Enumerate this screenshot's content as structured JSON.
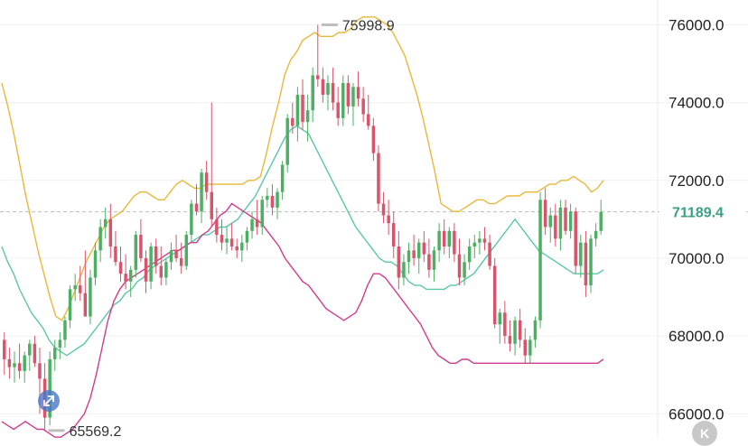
{
  "chart_data": {
    "type": "candlestick",
    "y_ticks": [
      "76000.0",
      "74000.0",
      "72000.0",
      "70000.0",
      "68000.0",
      "66000.0"
    ],
    "ylim": [
      65450,
      76450
    ],
    "high_marker": {
      "value": 75998.9,
      "label": "75998.9"
    },
    "low_marker": {
      "value": 65569.2,
      "label": "65569.2"
    },
    "current_price": {
      "value": 71189.4,
      "label": "71189.4"
    },
    "colors": {
      "up": "#4caf62",
      "down": "#d9536a",
      "upper_band": "#e8b83a",
      "middle_band": "#5cc6a8",
      "lower_band": "#d03c8c",
      "price_line": "#bdbdbd"
    },
    "candles": [
      [
        67900,
        68100,
        67000,
        67400
      ],
      [
        67400,
        67700,
        66900,
        67200
      ],
      [
        67200,
        67600,
        66800,
        67300
      ],
      [
        67300,
        67800,
        66900,
        67100
      ],
      [
        67100,
        67600,
        66800,
        67500
      ],
      [
        67500,
        67900,
        67100,
        67800
      ],
      [
        67800,
        68000,
        67200,
        67300
      ],
      [
        67300,
        67700,
        66000,
        66900
      ],
      [
        66900,
        67300,
        65569,
        65900
      ],
      [
        65900,
        67600,
        65700,
        67400
      ],
      [
        67400,
        67900,
        67100,
        67700
      ],
      [
        67700,
        68100,
        67400,
        67900
      ],
      [
        67900,
        68500,
        67700,
        68400
      ],
      [
        68400,
        69300,
        68200,
        69200
      ],
      [
        69200,
        69600,
        68900,
        69300
      ],
      [
        69300,
        69800,
        68900,
        69100
      ],
      [
        69100,
        70200,
        68500,
        68500
      ],
      [
        68500,
        69700,
        68300,
        69500
      ],
      [
        69500,
        70400,
        69300,
        70200
      ],
      [
        70200,
        71000,
        69900,
        70800
      ],
      [
        70800,
        71300,
        70500,
        71000
      ],
      [
        71000,
        71400,
        70000,
        70300
      ],
      [
        70300,
        70700,
        69800,
        69900
      ],
      [
        69900,
        70300,
        69400,
        69600
      ],
      [
        69600,
        70100,
        69200,
        69400
      ],
      [
        69400,
        69800,
        69000,
        69700
      ],
      [
        69700,
        70700,
        69500,
        70600
      ],
      [
        70600,
        71000,
        69900,
        70000
      ],
      [
        70000,
        70200,
        69100,
        69400
      ],
      [
        69400,
        70400,
        69200,
        70300
      ],
      [
        70300,
        70500,
        69600,
        69800
      ],
      [
        69800,
        70300,
        69300,
        69500
      ],
      [
        69500,
        70000,
        69300,
        69900
      ],
      [
        69900,
        70400,
        69700,
        70200
      ],
      [
        70200,
        70600,
        69900,
        70000
      ],
      [
        70000,
        70400,
        69600,
        69800
      ],
      [
        69800,
        70700,
        69700,
        70600
      ],
      [
        70600,
        71500,
        70400,
        71400
      ],
      [
        71400,
        71900,
        71100,
        71200
      ],
      [
        71200,
        72300,
        70900,
        72200
      ],
      [
        72200,
        72500,
        71500,
        71700
      ],
      [
        71700,
        74000,
        70800,
        71000
      ],
      [
        71000,
        71300,
        70400,
        70600
      ],
      [
        70600,
        71000,
        70200,
        70400
      ],
      [
        70400,
        70800,
        70100,
        70500
      ],
      [
        70500,
        70900,
        70200,
        70300
      ],
      [
        70300,
        70500,
        70000,
        70200
      ],
      [
        70200,
        70600,
        69900,
        70400
      ],
      [
        70400,
        70800,
        70200,
        70700
      ],
      [
        70700,
        71200,
        70500,
        71000
      ],
      [
        71000,
        71500,
        70600,
        70800
      ],
      [
        70800,
        71600,
        70600,
        71500
      ],
      [
        71500,
        71800,
        71300,
        71600
      ],
      [
        71600,
        71900,
        71100,
        71300
      ],
      [
        71300,
        71800,
        71000,
        71700
      ],
      [
        71700,
        72500,
        71500,
        72400
      ],
      [
        72400,
        73700,
        72200,
        73600
      ],
      [
        73600,
        74000,
        73200,
        73400
      ],
      [
        73400,
        74400,
        73000,
        74200
      ],
      [
        74200,
        74600,
        73300,
        73500
      ],
      [
        73500,
        74200,
        73000,
        73800
      ],
      [
        73800,
        74900,
        73500,
        74700
      ],
      [
        74700,
        76000,
        74400,
        74600
      ],
      [
        74600,
        74900,
        74000,
        74200
      ],
      [
        74200,
        74700,
        73800,
        74500
      ],
      [
        74500,
        74900,
        73800,
        74000
      ],
      [
        74000,
        74400,
        73400,
        73600
      ],
      [
        73600,
        74700,
        73400,
        74500
      ],
      [
        74500,
        74700,
        73700,
        73900
      ],
      [
        73900,
        74500,
        73400,
        74400
      ],
      [
        74400,
        74800,
        73900,
        74100
      ],
      [
        74100,
        74400,
        73500,
        73700
      ],
      [
        73700,
        74200,
        73300,
        73400
      ],
      [
        73400,
        73600,
        72500,
        72700
      ],
      [
        72700,
        72900,
        71200,
        71400
      ],
      [
        71400,
        71700,
        70900,
        71100
      ],
      [
        71100,
        71500,
        70600,
        70900
      ],
      [
        70900,
        71200,
        70000,
        70300
      ],
      [
        70300,
        70700,
        69200,
        69500
      ],
      [
        69500,
        70100,
        69300,
        69900
      ],
      [
        69900,
        70400,
        69600,
        70200
      ],
      [
        70200,
        70600,
        69800,
        70000
      ],
      [
        70000,
        70500,
        69600,
        70400
      ],
      [
        70400,
        70700,
        69900,
        70100
      ],
      [
        70100,
        70500,
        69500,
        69700
      ],
      [
        69700,
        70300,
        69400,
        70200
      ],
      [
        70200,
        70900,
        69900,
        70700
      ],
      [
        70700,
        71000,
        70100,
        70300
      ],
      [
        70300,
        70800,
        70000,
        70700
      ],
      [
        70700,
        70900,
        69900,
        70100
      ],
      [
        70100,
        70500,
        69300,
        69500
      ],
      [
        69500,
        70100,
        69300,
        69900
      ],
      [
        69900,
        70500,
        69700,
        70300
      ],
      [
        70300,
        70600,
        70000,
        70400
      ],
      [
        70400,
        70700,
        70100,
        70500
      ],
      [
        70500,
        70800,
        70200,
        70400
      ],
      [
        70400,
        70600,
        69700,
        69800
      ],
      [
        69800,
        70000,
        68200,
        68300
      ],
      [
        68300,
        68700,
        67800,
        68600
      ],
      [
        68600,
        68900,
        67800,
        68000
      ],
      [
        68000,
        68400,
        67600,
        67800
      ],
      [
        67800,
        68500,
        67500,
        68400
      ],
      [
        68400,
        68700,
        67700,
        67900
      ],
      [
        67900,
        68200,
        67300,
        67500
      ],
      [
        67500,
        68000,
        67300,
        67900
      ],
      [
        67900,
        68500,
        67700,
        68400
      ],
      [
        68400,
        71700,
        68200,
        71500
      ],
      [
        71500,
        71800,
        70600,
        70800
      ],
      [
        70800,
        71300,
        70400,
        71100
      ],
      [
        71100,
        71400,
        70300,
        70500
      ],
      [
        70500,
        71500,
        70200,
        71300
      ],
      [
        71300,
        71500,
        70600,
        70700
      ],
      [
        70700,
        71400,
        70500,
        71200
      ],
      [
        71200,
        71300,
        69600,
        69800
      ],
      [
        69800,
        70600,
        69500,
        70400
      ],
      [
        70400,
        70700,
        69000,
        69300
      ],
      [
        69300,
        70600,
        69100,
        70500
      ],
      [
        70500,
        70900,
        70300,
        70700
      ],
      [
        70700,
        71500,
        70600,
        71189.4
      ]
    ],
    "upper_band": [
      74500,
      73900,
      73200,
      72400,
      71600,
      70900,
      70200,
      69600,
      69000,
      68500,
      68400,
      68700,
      69100,
      69500,
      69900,
      70200,
      70500,
      70800,
      71000,
      71100,
      71200,
      71400,
      71600,
      71700,
      71700,
      71600,
      71500,
      71500,
      71700,
      71900,
      72000,
      71900,
      71800,
      71800,
      71900,
      71900,
      71900,
      71900,
      71900,
      71900,
      71900,
      72000,
      72000,
      72100,
      72700,
      73400,
      74000,
      74700,
      75100,
      75300,
      75600,
      75700,
      75800,
      75700,
      75700,
      75700,
      75800,
      75800,
      75900,
      76100,
      76200,
      76200,
      76200,
      76100,
      76000,
      75800,
      75500,
      75200,
      74700,
      74200,
      73600,
      72900,
      72200,
      71400,
      71300,
      71200,
      71200,
      71300,
      71400,
      71500,
      71500,
      71400,
      71400,
      71500,
      71600,
      71600,
      71600,
      71700,
      71700,
      71700,
      71800,
      71900,
      71900,
      72000,
      72000,
      72100,
      72000,
      71900,
      71700,
      71800,
      72000
    ],
    "middle_band": [
      70300,
      69900,
      69600,
      69200,
      68900,
      68600,
      68400,
      68200,
      67900,
      67700,
      67600,
      67500,
      67600,
      67700,
      67800,
      68000,
      68200,
      68400,
      68600,
      68800,
      68900,
      69100,
      69200,
      69400,
      69500,
      69700,
      69800,
      69900,
      70000,
      70100,
      70200,
      70300,
      70400,
      70500,
      70600,
      70600,
      70700,
      70800,
      70800,
      70900,
      71000,
      71200,
      71400,
      71600,
      71900,
      72200,
      72500,
      72800,
      73100,
      73300,
      73400,
      73300,
      73200,
      72900,
      72600,
      72300,
      72000,
      71700,
      71400,
      71100,
      70800,
      70600,
      70400,
      70200,
      70000,
      69900,
      69900,
      69800,
      69600,
      69400,
      69300,
      69300,
      69200,
      69200,
      69200,
      69200,
      69300,
      69300,
      69400,
      69500,
      69600,
      69800,
      70000,
      70200,
      70400,
      70600,
      70800,
      71000,
      70800,
      70600,
      70400,
      70200,
      70100,
      70000,
      69900,
      69800,
      69700,
      69600,
      69600,
      69600,
      69600,
      69600,
      69700
    ],
    "lower_band": [
      65800,
      65700,
      65600,
      65700,
      65800,
      65700,
      65600,
      65600,
      65500,
      65400,
      65400,
      65500,
      65600,
      65800,
      66000,
      66400,
      67000,
      67700,
      68400,
      68900,
      69200,
      69400,
      69500,
      69600,
      69700,
      69800,
      69900,
      70000,
      70100,
      70200,
      70200,
      70300,
      70400,
      70400,
      70600,
      70700,
      70900,
      71100,
      71200,
      71400,
      71300,
      71200,
      71100,
      71000,
      70900,
      70700,
      70500,
      70300,
      70000,
      69800,
      69600,
      69400,
      69300,
      69100,
      68900,
      68700,
      68600,
      68500,
      68400,
      68500,
      68600,
      68900,
      69300,
      69600,
      69600,
      69500,
      69300,
      69100,
      68900,
      68700,
      68500,
      68300,
      68000,
      67700,
      67500,
      67400,
      67300,
      67300,
      67400,
      67400,
      67300,
      67300,
      67300,
      67300,
      67300,
      67300,
      67300,
      67300,
      67300,
      67300,
      67300,
      67300,
      67300,
      67300,
      67300,
      67300,
      67300,
      67300,
      67300,
      67300,
      67300,
      67300,
      67400
    ]
  },
  "ui": {
    "k_icon": "K",
    "expand_icon": "expand-arrows-icon"
  }
}
